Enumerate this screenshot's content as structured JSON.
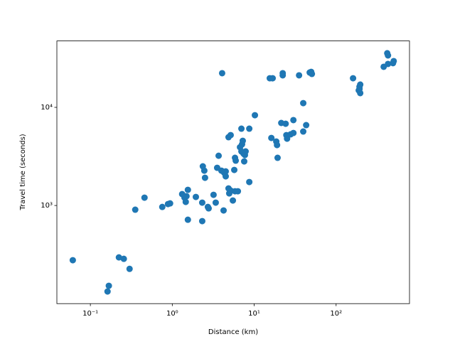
{
  "chart_data": {
    "type": "scatter",
    "xlabel": "Distance (km)",
    "ylabel": "Travel time (seconds)",
    "xscale": "log",
    "yscale": "log",
    "color": "#1f77b4",
    "xlim": [
      0.039,
      787
    ],
    "ylim": [
      100,
      47500
    ],
    "xticks": [
      {
        "value": 0.1,
        "label": "10⁻¹"
      },
      {
        "value": 1,
        "label": "10⁰"
      },
      {
        "value": 10,
        "label": "10¹"
      },
      {
        "value": 100,
        "label": "10²"
      }
    ],
    "yticks": [
      {
        "value": 1000,
        "label": "10³"
      },
      {
        "value": 10000,
        "label": "10⁴"
      }
    ],
    "x": [
      0.061,
      0.162,
      0.168,
      0.223,
      0.256,
      0.301,
      0.353,
      0.458,
      0.755,
      0.887,
      0.94,
      1.32,
      1.41,
      1.46,
      1.49,
      1.55,
      1.55,
      1.94,
      2.32,
      2.32,
      2.36,
      2.46,
      2.51,
      2.72,
      2.78,
      3.19,
      3.39,
      3.53,
      3.68,
      4.06,
      3.98,
      4.23,
      4.31,
      4.49,
      4.49,
      4.86,
      4.86,
      4.96,
      5.16,
      5.16,
      5.49,
      5.71,
      5.83,
      5.83,
      5.95,
      6.32,
      6.71,
      6.98,
      6.98,
      7.11,
      7.25,
      7.4,
      7.55,
      7.7,
      7.86,
      8.71,
      8.71,
      10.2,
      15.5,
      16.8,
      16.2,
      18.6,
      19.0,
      19.3,
      21.4,
      22.3,
      22.3,
      24.2,
      25.2,
      24.7,
      27.8,
      30.1,
      30.1,
      35.3,
      39.7,
      39.7,
      43.1,
      47.6,
      49.6,
      50.6,
      161,
      189,
      193,
      197,
      197,
      193,
      381,
      421,
      430,
      430,
      495,
      505
    ],
    "y": [
      277,
      133,
      152,
      296,
      286,
      226,
      906,
      1202,
      967,
      1034,
      1051,
      1306,
      1202,
      1087,
      1243,
      1444,
      716,
      1222,
      1069,
      693,
      2507,
      2264,
      1917,
      967,
      935,
      1285,
      1069,
      2422,
      3213,
      22300,
      2264,
      890,
      2155,
      1982,
      2226,
      1493,
      4966,
      1328,
      5214,
      1419,
      1124,
      2302,
      1396,
      3061,
      2864,
      1396,
      3926,
      6067,
      3556,
      4200,
      4563,
      3381,
      2812,
      3268,
      3556,
      1734,
      6067,
      8318,
      19800,
      19800,
      4876,
      4487,
      4130,
      3061,
      6934,
      22300,
      21200,
      6808,
      4797,
      5214,
      5308,
      5483,
      7413,
      21200,
      11040,
      5675,
      6590,
      22640,
      23000,
      21900,
      19800,
      14900,
      16200,
      13970,
      17060,
      15400,
      25900,
      35600,
      33800,
      27700,
      28200,
      29600
    ]
  }
}
